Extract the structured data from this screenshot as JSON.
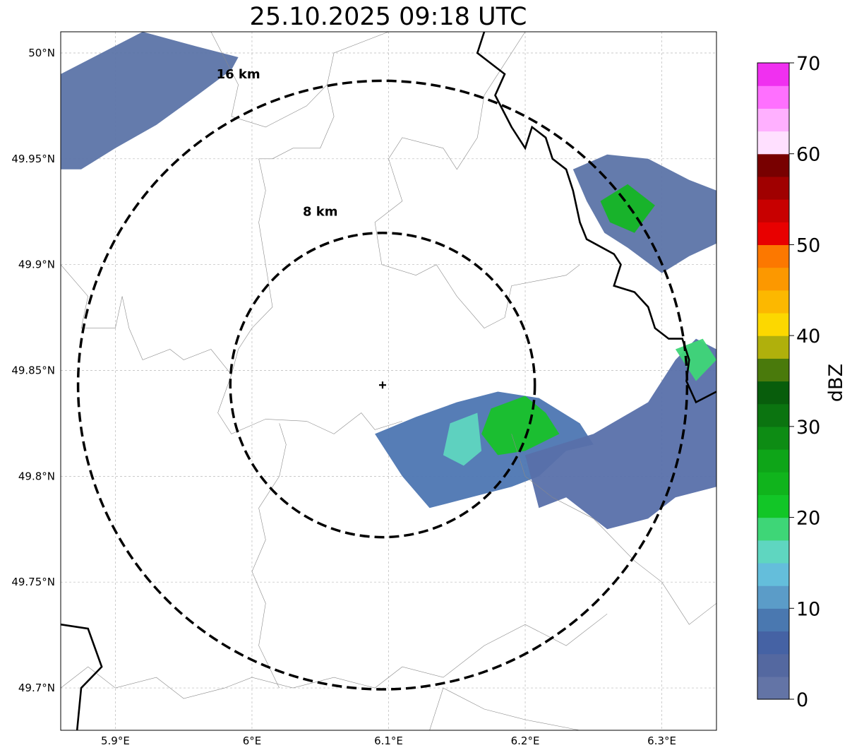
{
  "title": "25.10.2025 09:18 UTC",
  "map": {
    "lon_range": [
      5.86,
      6.34
    ],
    "lat_range": [
      49.68,
      50.01
    ],
    "lon_ticks": [
      {
        "value": 5.9,
        "label": "5.9°E"
      },
      {
        "value": 6.0,
        "label": "6°E"
      },
      {
        "value": 6.1,
        "label": "6.1°E"
      },
      {
        "value": 6.2,
        "label": "6.2°E"
      },
      {
        "value": 6.3,
        "label": "6.3°E"
      }
    ],
    "lat_ticks": [
      {
        "value": 50.0,
        "label": "50°N"
      },
      {
        "value": 49.95,
        "label": "49.95°N"
      },
      {
        "value": 49.9,
        "label": "49.9°N"
      },
      {
        "value": 49.85,
        "label": "49.85°N"
      },
      {
        "value": 49.8,
        "label": "49.8°N"
      },
      {
        "value": 49.75,
        "label": "49.75°N"
      },
      {
        "value": 49.7,
        "label": "49.7°N"
      }
    ],
    "radar_site": {
      "lon": 6.0956,
      "lat": 49.8431
    },
    "rings": [
      {
        "radius_km": 8,
        "label": "8 km",
        "label_lon": 6.05,
        "label_lat": 49.923
      },
      {
        "radius_km": 16,
        "label": "16 km",
        "label_lon": 5.99,
        "label_lat": 49.988
      }
    ],
    "grid": true
  },
  "colorbar": {
    "label": "dBZ",
    "min": 0,
    "max": 70,
    "ticks": [
      {
        "value": 0,
        "label": "0"
      },
      {
        "value": 10,
        "label": "10"
      },
      {
        "value": 20,
        "label": "20"
      },
      {
        "value": 30,
        "label": "30"
      },
      {
        "value": 40,
        "label": "40"
      },
      {
        "value": 50,
        "label": "50"
      },
      {
        "value": 60,
        "label": "60"
      },
      {
        "value": 70,
        "label": "70"
      }
    ],
    "colors": [
      "#6374a6",
      "#5468a0",
      "#4562a4",
      "#4a78b0",
      "#5b9cc8",
      "#64bedb",
      "#5fd6c0",
      "#3ed677",
      "#12c627",
      "#10b41c",
      "#0ea518",
      "#0d8c14",
      "#0b7410",
      "#085d0c",
      "#4a7a0c",
      "#b0b00c",
      "#fcd800",
      "#fcb800",
      "#fc9800",
      "#fc7800",
      "#e80000",
      "#c80000",
      "#a00000",
      "#780000",
      "#ffe0ff",
      "#ffb0ff",
      "#ff70ff",
      "#f030f0"
    ]
  },
  "echo_regions": [
    {
      "name": "northwest",
      "color": "#5c74a8",
      "points": [
        [
          5.86,
          49.99
        ],
        [
          5.92,
          50.01
        ],
        [
          5.96,
          50.003
        ],
        [
          5.99,
          49.998
        ],
        [
          5.985,
          49.992
        ],
        [
          5.96,
          49.98
        ],
        [
          5.93,
          49.966
        ],
        [
          5.9,
          49.955
        ],
        [
          5.875,
          49.945
        ],
        [
          5.86,
          49.945
        ]
      ]
    },
    {
      "name": "northeast",
      "color": "#5c74a8",
      "points": [
        [
          6.235,
          49.945
        ],
        [
          6.26,
          49.952
        ],
        [
          6.29,
          49.95
        ],
        [
          6.32,
          49.94
        ],
        [
          6.34,
          49.935
        ],
        [
          6.34,
          49.91
        ],
        [
          6.32,
          49.904
        ],
        [
          6.3,
          49.896
        ],
        [
          6.275,
          49.908
        ],
        [
          6.258,
          49.915
        ],
        [
          6.245,
          49.93
        ]
      ]
    },
    {
      "name": "southcentral",
      "color": "#4d76b2",
      "points": [
        [
          6.09,
          49.82
        ],
        [
          6.12,
          49.828
        ],
        [
          6.15,
          49.835
        ],
        [
          6.18,
          49.84
        ],
        [
          6.21,
          49.837
        ],
        [
          6.24,
          49.825
        ],
        [
          6.25,
          49.815
        ],
        [
          6.23,
          49.812
        ],
        [
          6.21,
          49.8
        ],
        [
          6.19,
          49.795
        ],
        [
          6.16,
          49.79
        ],
        [
          6.13,
          49.785
        ],
        [
          6.11,
          49.8
        ]
      ]
    },
    {
      "name": "southeast",
      "color": "#5870aa",
      "points": [
        [
          6.25,
          49.82
        ],
        [
          6.29,
          49.835
        ],
        [
          6.31,
          49.855
        ],
        [
          6.325,
          49.865
        ],
        [
          6.34,
          49.86
        ],
        [
          6.34,
          49.795
        ],
        [
          6.31,
          49.79
        ],
        [
          6.29,
          49.78
        ],
        [
          6.26,
          49.775
        ],
        [
          6.23,
          49.79
        ],
        [
          6.21,
          49.785
        ],
        [
          6.2,
          49.81
        ]
      ]
    }
  ],
  "echo_cores": [
    {
      "name": "southcentral-core",
      "color": "#18c22a",
      "points": [
        [
          6.175,
          49.832
        ],
        [
          6.2,
          49.838
        ],
        [
          6.215,
          49.83
        ],
        [
          6.225,
          49.82
        ],
        [
          6.2,
          49.812
        ],
        [
          6.18,
          49.81
        ],
        [
          6.168,
          49.82
        ]
      ]
    },
    {
      "name": "southcentral-mid",
      "color": "#5fd6c0",
      "points": [
        [
          6.145,
          49.825
        ],
        [
          6.165,
          49.83
        ],
        [
          6.168,
          49.812
        ],
        [
          6.155,
          49.805
        ],
        [
          6.14,
          49.81
        ]
      ]
    },
    {
      "name": "northeast-core",
      "color": "#14b624",
      "points": [
        [
          6.255,
          49.93
        ],
        [
          6.275,
          49.938
        ],
        [
          6.295,
          49.928
        ],
        [
          6.28,
          49.915
        ],
        [
          6.262,
          49.92
        ]
      ]
    },
    {
      "name": "southeast-core",
      "color": "#3ed677",
      "points": [
        [
          6.31,
          49.86
        ],
        [
          6.33,
          49.865
        ],
        [
          6.34,
          49.855
        ],
        [
          6.325,
          49.845
        ]
      ]
    }
  ]
}
